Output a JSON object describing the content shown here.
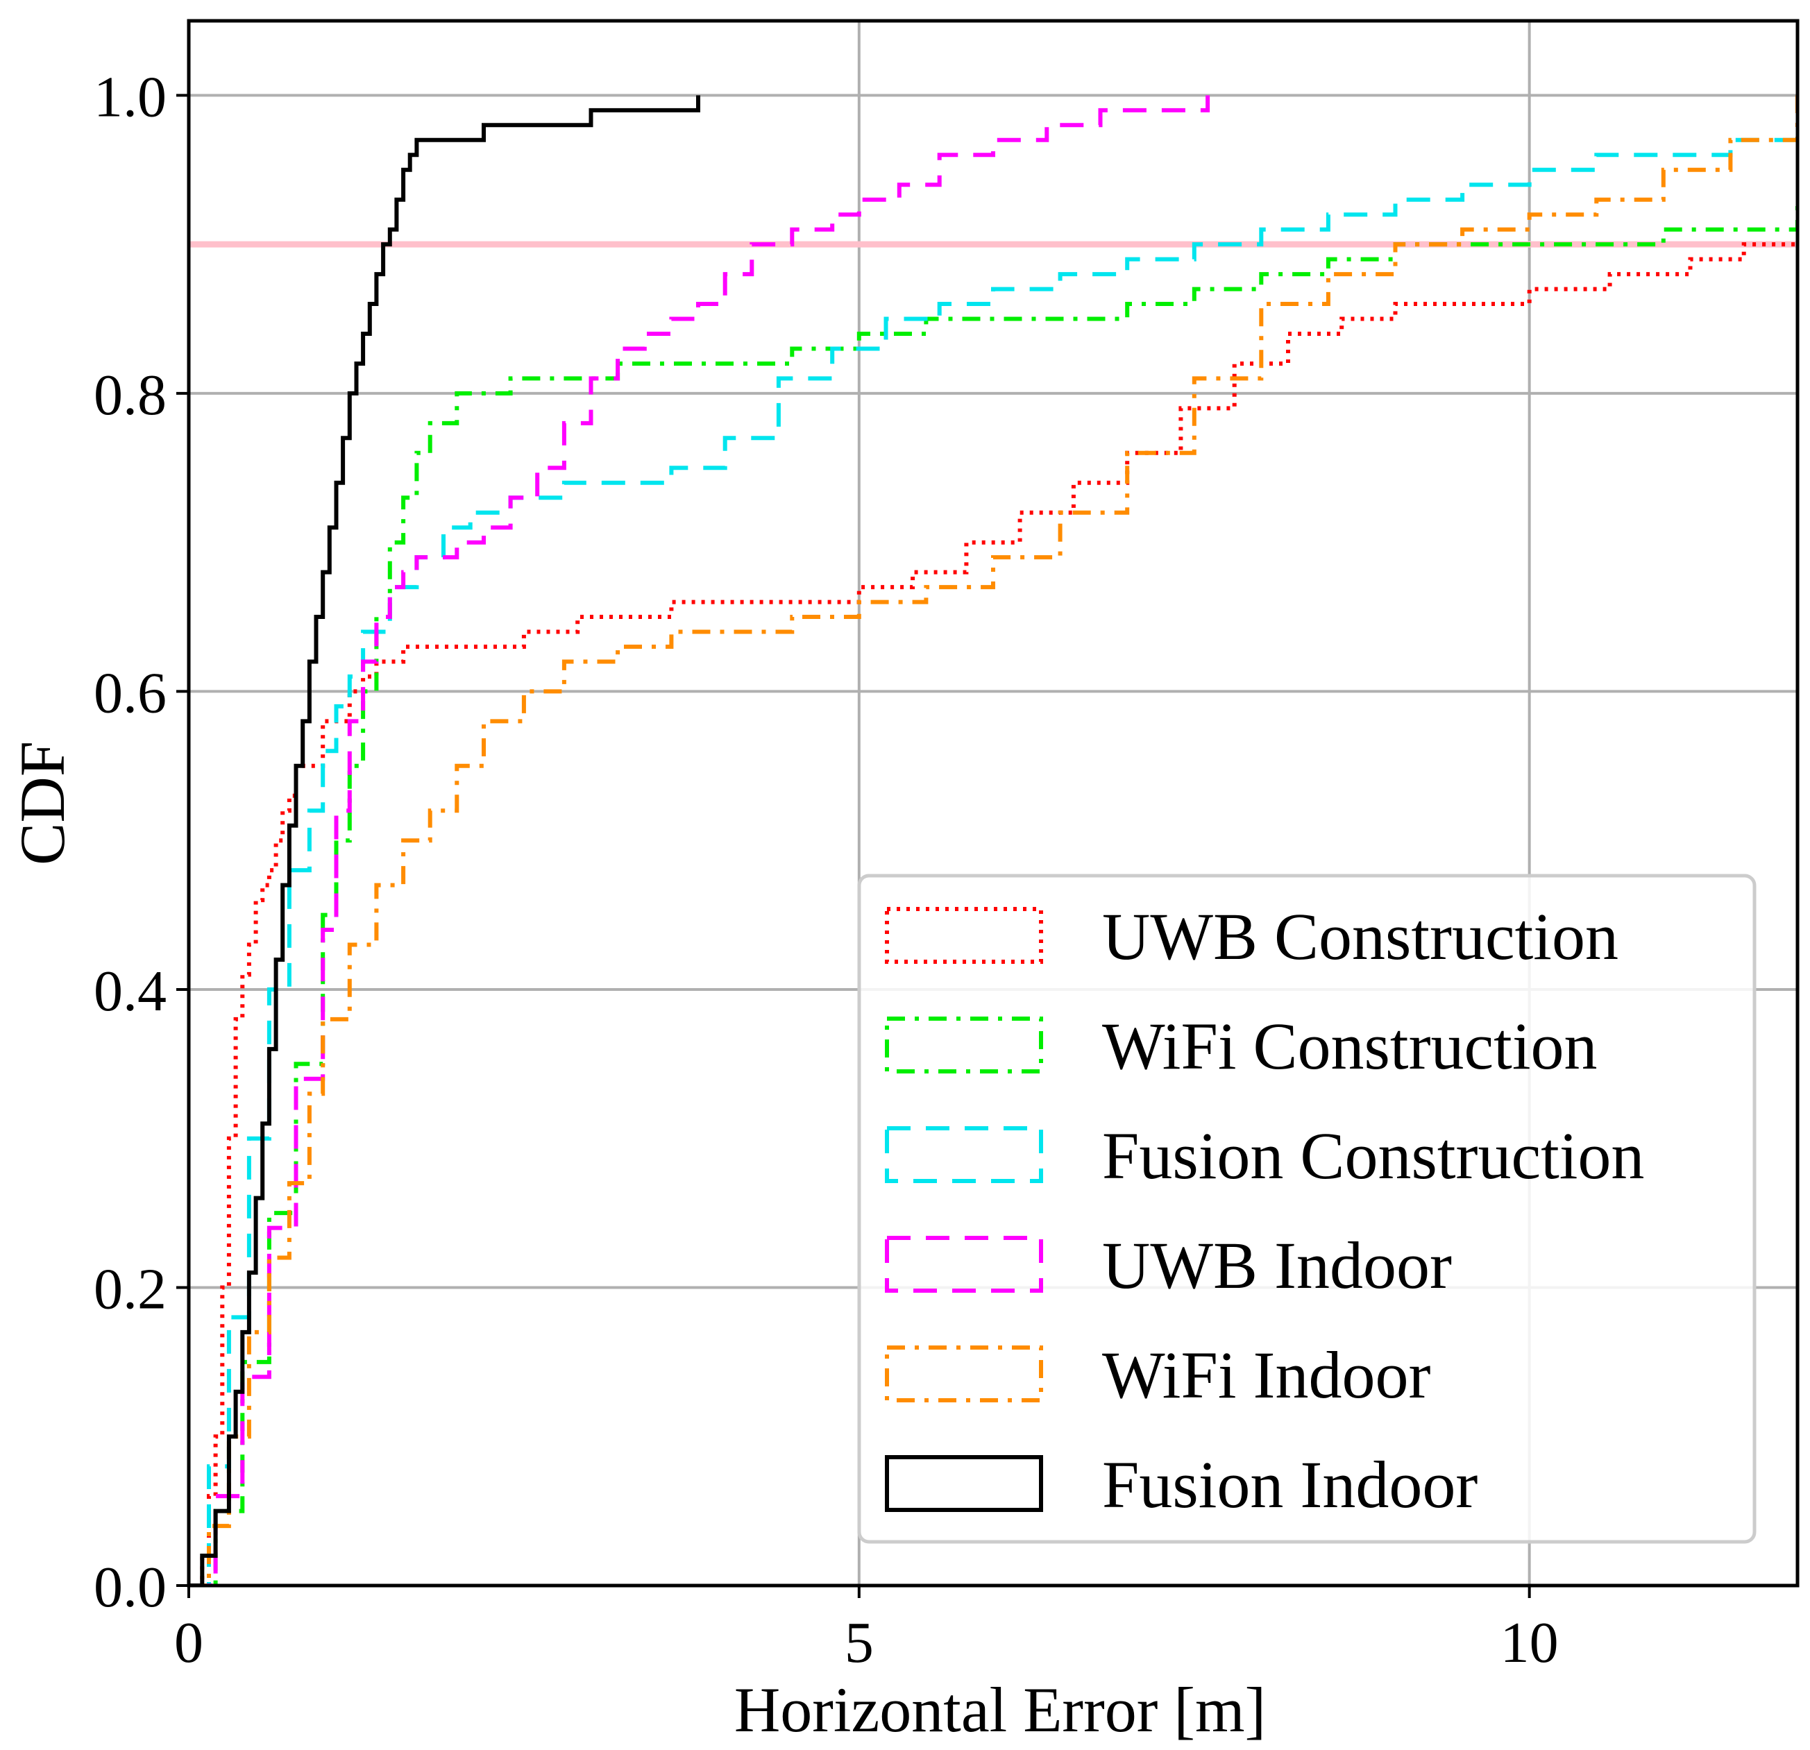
{
  "chart_data": {
    "type": "line",
    "title": "",
    "xlabel": "Horizontal Error [m]",
    "ylabel": "CDF",
    "xlim": [
      0,
      12
    ],
    "ylim": [
      0,
      1.05
    ],
    "xticks": [
      0,
      5,
      10
    ],
    "xtick_labels": [
      "0",
      "5",
      "10"
    ],
    "yticks": [
      0.0,
      0.2,
      0.4,
      0.6,
      0.8,
      1.0
    ],
    "ytick_labels": [
      "0.0",
      "0.2",
      "0.4",
      "0.6",
      "0.8",
      "1.0"
    ],
    "grid": true,
    "legend_position": "lower-right",
    "reference_line": {
      "y": 0.9,
      "color": "#ffc0cb"
    },
    "series": [
      {
        "name": "UWB Construction",
        "color": "#ff0000",
        "dash": "dotted",
        "x": [
          0.0,
          0.1,
          0.15,
          0.2,
          0.25,
          0.3,
          0.35,
          0.4,
          0.45,
          0.5,
          0.55,
          0.6,
          0.65,
          0.7,
          0.75,
          0.8,
          1.0,
          1.2,
          1.3,
          1.4,
          1.5,
          1.6,
          1.8,
          2.2,
          2.5,
          2.9,
          3.2,
          3.6,
          4.0,
          4.4,
          4.8,
          5.0,
          5.4,
          5.8,
          6.2,
          6.6,
          7.0,
          7.4,
          7.8,
          8.2,
          8.6,
          9.0,
          9.4,
          10.0,
          10.6,
          11.2,
          11.6,
          12.0
        ],
        "y": [
          0.0,
          0.02,
          0.06,
          0.1,
          0.2,
          0.3,
          0.38,
          0.41,
          0.43,
          0.46,
          0.47,
          0.48,
          0.5,
          0.52,
          0.53,
          0.55,
          0.58,
          0.6,
          0.61,
          0.62,
          0.62,
          0.63,
          0.63,
          0.63,
          0.64,
          0.65,
          0.65,
          0.66,
          0.66,
          0.66,
          0.66,
          0.67,
          0.68,
          0.7,
          0.72,
          0.74,
          0.76,
          0.79,
          0.82,
          0.84,
          0.85,
          0.86,
          0.86,
          0.87,
          0.88,
          0.89,
          0.9,
          0.9
        ]
      },
      {
        "name": "WiFi Construction",
        "color": "#00ee00",
        "dash": "dashdot",
        "x": [
          0.0,
          0.2,
          0.4,
          0.6,
          0.8,
          1.0,
          1.1,
          1.2,
          1.3,
          1.4,
          1.5,
          1.6,
          1.7,
          1.8,
          2.0,
          2.4,
          2.8,
          3.2,
          3.6,
          4.0,
          4.5,
          5.0,
          5.5,
          6.0,
          6.5,
          7.0,
          7.5,
          8.0,
          8.5,
          9.0,
          10.0,
          11.0,
          12.0
        ],
        "y": [
          0.0,
          0.05,
          0.15,
          0.25,
          0.35,
          0.45,
          0.5,
          0.55,
          0.6,
          0.65,
          0.7,
          0.73,
          0.76,
          0.78,
          0.8,
          0.81,
          0.81,
          0.82,
          0.82,
          0.82,
          0.83,
          0.84,
          0.85,
          0.85,
          0.85,
          0.86,
          0.87,
          0.88,
          0.89,
          0.9,
          0.9,
          0.91,
          0.93
        ]
      },
      {
        "name": "Fusion Construction",
        "color": "#00e5ee",
        "dash": "dashed",
        "x": [
          0.0,
          0.15,
          0.3,
          0.45,
          0.6,
          0.75,
          0.9,
          1.0,
          1.1,
          1.2,
          1.3,
          1.5,
          1.7,
          1.9,
          2.1,
          2.4,
          2.8,
          3.2,
          3.6,
          4.0,
          4.4,
          4.8,
          5.2,
          5.6,
          6.0,
          6.5,
          7.0,
          7.5,
          8.0,
          8.5,
          9.0,
          9.5,
          10.0,
          10.5,
          11.0,
          11.5,
          12.0
        ],
        "y": [
          0.0,
          0.08,
          0.18,
          0.3,
          0.4,
          0.48,
          0.52,
          0.56,
          0.59,
          0.61,
          0.64,
          0.67,
          0.69,
          0.71,
          0.72,
          0.73,
          0.74,
          0.74,
          0.75,
          0.77,
          0.81,
          0.83,
          0.85,
          0.86,
          0.87,
          0.88,
          0.89,
          0.9,
          0.91,
          0.92,
          0.93,
          0.94,
          0.95,
          0.96,
          0.96,
          0.97,
          0.98
        ]
      },
      {
        "name": "UWB Indoor",
        "color": "#ff00ff",
        "dash": "dashed",
        "x": [
          0.0,
          0.2,
          0.4,
          0.6,
          0.8,
          1.0,
          1.1,
          1.2,
          1.3,
          1.4,
          1.5,
          1.6,
          1.7,
          1.8,
          2.0,
          2.2,
          2.4,
          2.6,
          2.8,
          3.0,
          3.2,
          3.4,
          3.6,
          3.8,
          4.0,
          4.2,
          4.5,
          4.8,
          5.0,
          5.3,
          5.6,
          6.0,
          6.4,
          6.8,
          7.2,
          7.6
        ],
        "y": [
          0.0,
          0.06,
          0.14,
          0.24,
          0.34,
          0.44,
          0.52,
          0.58,
          0.62,
          0.65,
          0.67,
          0.68,
          0.69,
          0.69,
          0.7,
          0.71,
          0.73,
          0.75,
          0.78,
          0.81,
          0.83,
          0.84,
          0.85,
          0.86,
          0.88,
          0.9,
          0.91,
          0.92,
          0.93,
          0.94,
          0.96,
          0.97,
          0.98,
          0.99,
          0.99,
          1.0
        ]
      },
      {
        "name": "WiFi Indoor",
        "color": "#ff8c00",
        "dash": "dashdot",
        "x": [
          0.0,
          0.15,
          0.3,
          0.45,
          0.6,
          0.75,
          0.9,
          1.0,
          1.2,
          1.4,
          1.6,
          1.8,
          2.0,
          2.2,
          2.5,
          2.8,
          3.2,
          3.6,
          4.0,
          4.5,
          5.0,
          5.5,
          6.0,
          6.5,
          7.0,
          7.5,
          8.0,
          8.5,
          9.0,
          9.5,
          10.0,
          10.5,
          11.0,
          11.5,
          12.0
        ],
        "y": [
          0.0,
          0.04,
          0.1,
          0.17,
          0.22,
          0.27,
          0.33,
          0.38,
          0.43,
          0.47,
          0.5,
          0.52,
          0.55,
          0.58,
          0.6,
          0.62,
          0.63,
          0.64,
          0.64,
          0.65,
          0.66,
          0.67,
          0.69,
          0.72,
          0.76,
          0.81,
          0.86,
          0.88,
          0.9,
          0.91,
          0.92,
          0.93,
          0.95,
          0.97,
          1.0
        ]
      },
      {
        "name": "Fusion Indoor",
        "color": "#000000",
        "dash": "solid",
        "x": [
          0.0,
          0.1,
          0.2,
          0.3,
          0.35,
          0.4,
          0.45,
          0.5,
          0.55,
          0.6,
          0.65,
          0.7,
          0.75,
          0.8,
          0.85,
          0.9,
          0.95,
          1.0,
          1.05,
          1.1,
          1.15,
          1.2,
          1.25,
          1.3,
          1.35,
          1.4,
          1.45,
          1.5,
          1.55,
          1.6,
          1.65,
          1.7,
          1.8,
          2.0,
          2.2,
          2.5,
          3.0,
          3.4,
          3.6,
          3.8
        ],
        "y": [
          0.0,
          0.02,
          0.05,
          0.1,
          0.13,
          0.17,
          0.21,
          0.26,
          0.31,
          0.36,
          0.42,
          0.47,
          0.51,
          0.55,
          0.58,
          0.62,
          0.65,
          0.68,
          0.71,
          0.74,
          0.77,
          0.8,
          0.82,
          0.84,
          0.86,
          0.88,
          0.9,
          0.91,
          0.93,
          0.95,
          0.96,
          0.97,
          0.97,
          0.97,
          0.98,
          0.98,
          0.99,
          0.99,
          0.99,
          1.0
        ]
      }
    ]
  }
}
